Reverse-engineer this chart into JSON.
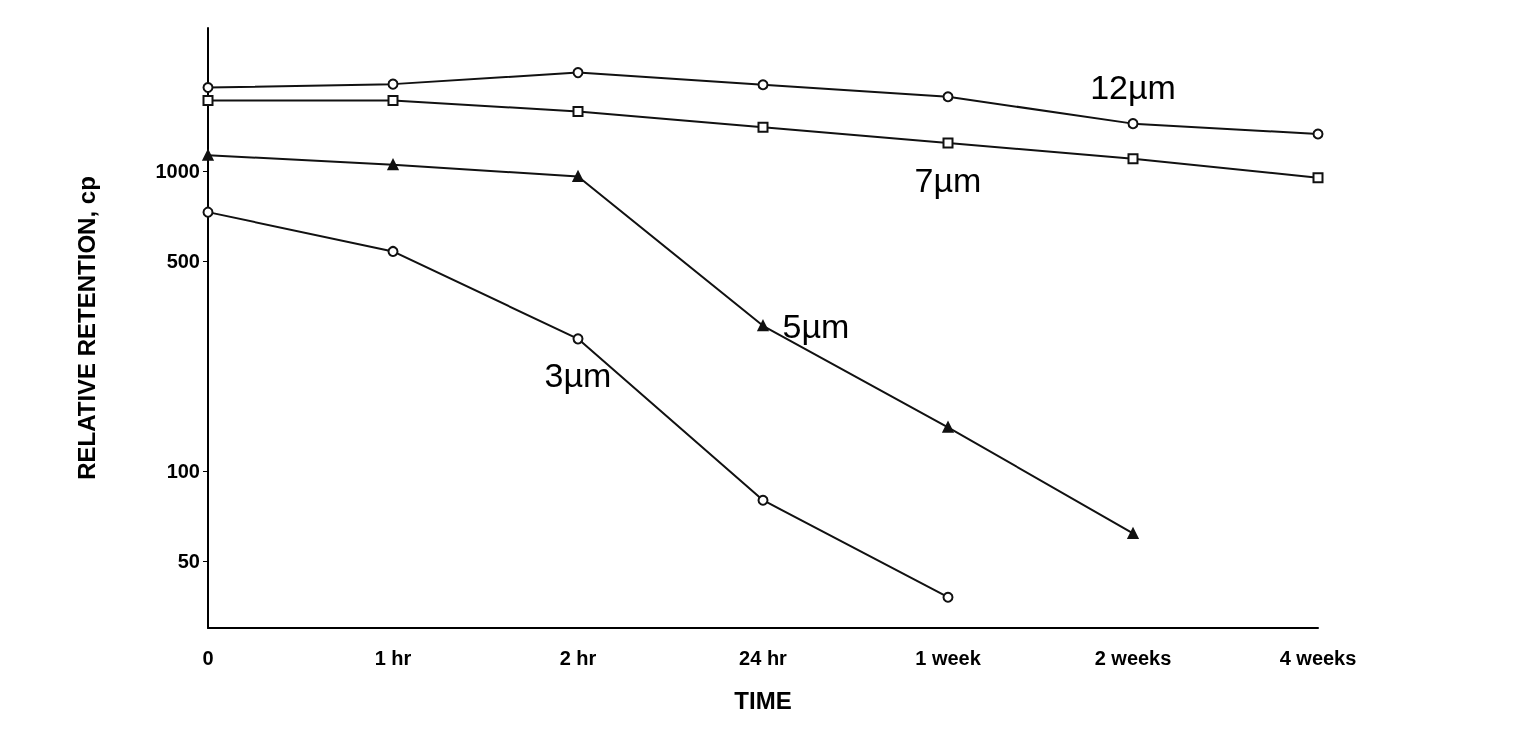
{
  "chart_data": {
    "type": "line",
    "xlabel": "TIME",
    "ylabel": "RELATIVE RETENTION, cp",
    "categories": [
      "0",
      "1 hr",
      "2 hr",
      "24 hr",
      "1 week",
      "2 weeks",
      "4 weeks"
    ],
    "log": "y",
    "ylim": [
      30,
      3000
    ],
    "yticks": [
      50,
      100,
      500,
      1000
    ],
    "grid": false,
    "legend": false,
    "line_style": "solid",
    "series": [
      {
        "name": "12µm",
        "color": "#111111",
        "marker": "circle",
        "values": [
          1900,
          1950,
          2130,
          1940,
          1770,
          1440,
          1330
        ]
      },
      {
        "name": "7µm",
        "color": "#111111",
        "marker": "square",
        "values": [
          1720,
          1720,
          1580,
          1400,
          1240,
          1100,
          950
        ]
      },
      {
        "name": "5µm",
        "color": "#111111",
        "marker": "triangle",
        "values": [
          1130,
          1050,
          960,
          305,
          140,
          62,
          null
        ]
      },
      {
        "name": "3µm",
        "color": "#111111",
        "marker": "circle",
        "values": [
          730,
          540,
          276,
          80,
          38,
          null,
          null
        ]
      }
    ]
  }
}
